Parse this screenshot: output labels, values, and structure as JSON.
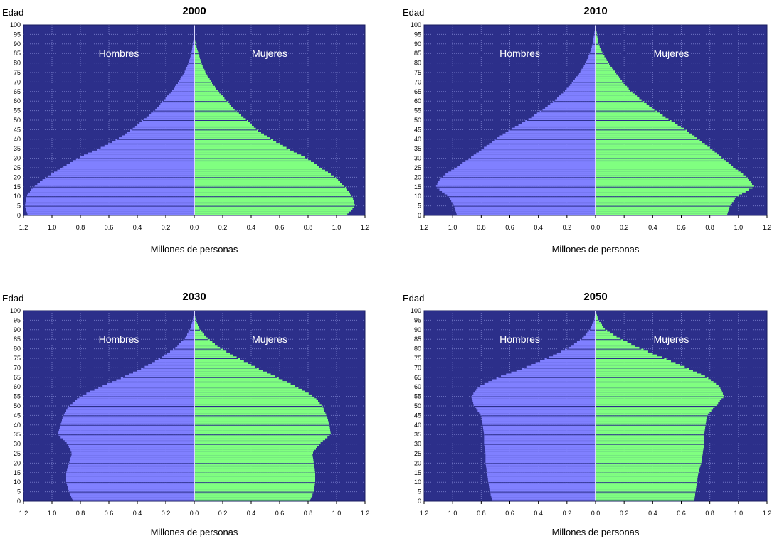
{
  "colors": {
    "plot_background": "#2c2f8a",
    "grid": "#6f74c4",
    "hombres": "#8080ff",
    "mujeres": "#80ff80",
    "center_line": "#d8d8ff",
    "band_separator": "#2c2f8a"
  },
  "chart_data": [
    {
      "type": "bar",
      "subtype": "population-pyramid",
      "title": "2000",
      "ylabel": "Edad",
      "xlabel": "Millones de personas",
      "left_series_label": "Hombres",
      "right_series_label": "Mujeres",
      "yticks": [
        "0",
        "5",
        "10",
        "15",
        "20",
        "25",
        "30",
        "35",
        "40",
        "45",
        "50",
        "55",
        "60",
        "65",
        "70",
        "75",
        "80",
        "85",
        "90",
        "95",
        "100"
      ],
      "xticks": [
        "1.2",
        "1.0",
        "0.8",
        "0.6",
        "0.4",
        "0.2",
        "0.0",
        "0.2",
        "0.4",
        "0.6",
        "0.8",
        "1.0",
        "1.2"
      ],
      "xlim": [
        -1.2,
        1.2
      ],
      "ylim": [
        0,
        100
      ],
      "grid": true,
      "series": [
        {
          "name": "Hombres",
          "ages": [
            0,
            5,
            10,
            15,
            20,
            25,
            30,
            35,
            40,
            45,
            50,
            55,
            60,
            65,
            70,
            75,
            80,
            85,
            90,
            95,
            100
          ],
          "values": [
            1.17,
            1.19,
            1.18,
            1.13,
            1.04,
            0.93,
            0.82,
            0.67,
            0.54,
            0.44,
            0.36,
            0.28,
            0.22,
            0.16,
            0.11,
            0.07,
            0.04,
            0.02,
            0.01,
            0.0,
            0.0
          ]
        },
        {
          "name": "Mujeres",
          "ages": [
            0,
            5,
            10,
            15,
            20,
            25,
            30,
            35,
            40,
            45,
            50,
            55,
            60,
            65,
            70,
            75,
            80,
            85,
            90,
            95,
            100
          ],
          "values": [
            1.07,
            1.13,
            1.11,
            1.06,
            0.99,
            0.89,
            0.79,
            0.66,
            0.54,
            0.44,
            0.37,
            0.29,
            0.23,
            0.17,
            0.12,
            0.08,
            0.05,
            0.03,
            0.01,
            0.0,
            0.0
          ]
        }
      ]
    },
    {
      "type": "bar",
      "subtype": "population-pyramid",
      "title": "2010",
      "ylabel": "Edad",
      "xlabel": "Millones de personas",
      "left_series_label": "Hombres",
      "right_series_label": "Mujeres",
      "yticks": [
        "0",
        "5",
        "10",
        "15",
        "20",
        "25",
        "30",
        "35",
        "40",
        "45",
        "50",
        "55",
        "60",
        "65",
        "70",
        "75",
        "80",
        "85",
        "90",
        "95",
        "100"
      ],
      "xticks": [
        "1.2",
        "1.0",
        "0.8",
        "0.6",
        "0.4",
        "0.2",
        "0.0",
        "0.2",
        "0.4",
        "0.6",
        "0.8",
        "1.0",
        "1.2"
      ],
      "xlim": [
        -1.2,
        1.2
      ],
      "ylim": [
        0,
        100
      ],
      "grid": true,
      "series": [
        {
          "name": "Hombres",
          "ages": [
            0,
            5,
            10,
            15,
            20,
            25,
            30,
            35,
            40,
            45,
            50,
            55,
            60,
            65,
            70,
            75,
            80,
            85,
            90,
            95,
            100
          ],
          "values": [
            0.97,
            0.99,
            1.03,
            1.12,
            1.08,
            0.98,
            0.88,
            0.79,
            0.7,
            0.6,
            0.48,
            0.38,
            0.29,
            0.22,
            0.16,
            0.11,
            0.07,
            0.04,
            0.02,
            0.01,
            0.0
          ]
        },
        {
          "name": "Mujeres",
          "ages": [
            0,
            5,
            10,
            15,
            20,
            25,
            30,
            35,
            40,
            45,
            50,
            55,
            60,
            65,
            70,
            75,
            80,
            85,
            90,
            95,
            100
          ],
          "values": [
            0.92,
            0.94,
            0.99,
            1.11,
            1.06,
            0.97,
            0.89,
            0.81,
            0.72,
            0.63,
            0.52,
            0.42,
            0.33,
            0.25,
            0.19,
            0.14,
            0.09,
            0.05,
            0.02,
            0.01,
            0.0
          ]
        }
      ]
    },
    {
      "type": "bar",
      "subtype": "population-pyramid",
      "title": "2030",
      "ylabel": "Edad",
      "xlabel": "Millones de personas",
      "left_series_label": "Hombres",
      "right_series_label": "Mujeres",
      "yticks": [
        "0",
        "5",
        "10",
        "15",
        "20",
        "25",
        "30",
        "35",
        "40",
        "45",
        "50",
        "55",
        "60",
        "65",
        "70",
        "75",
        "80",
        "85",
        "90",
        "95",
        "100"
      ],
      "xticks": [
        "1.2",
        "1.0",
        "0.8",
        "0.6",
        "0.4",
        "0.2",
        "0.0",
        "0.2",
        "0.4",
        "0.6",
        "0.8",
        "1.0",
        "1.2"
      ],
      "xlim": [
        -1.2,
        1.2
      ],
      "ylim": [
        0,
        100
      ],
      "grid": true,
      "series": [
        {
          "name": "Hombres",
          "ages": [
            0,
            5,
            10,
            15,
            20,
            25,
            30,
            35,
            40,
            45,
            50,
            55,
            60,
            65,
            70,
            75,
            80,
            85,
            90,
            95,
            100
          ],
          "values": [
            0.85,
            0.88,
            0.9,
            0.9,
            0.88,
            0.86,
            0.89,
            0.96,
            0.94,
            0.92,
            0.88,
            0.8,
            0.66,
            0.5,
            0.36,
            0.24,
            0.14,
            0.07,
            0.03,
            0.01,
            0.0
          ]
        },
        {
          "name": "Mujeres",
          "ages": [
            0,
            5,
            10,
            15,
            20,
            25,
            30,
            35,
            40,
            45,
            50,
            55,
            60,
            65,
            70,
            75,
            80,
            85,
            90,
            95,
            100
          ],
          "values": [
            0.81,
            0.84,
            0.85,
            0.85,
            0.84,
            0.83,
            0.88,
            0.96,
            0.95,
            0.93,
            0.9,
            0.84,
            0.72,
            0.58,
            0.44,
            0.31,
            0.19,
            0.1,
            0.04,
            0.01,
            0.0
          ]
        }
      ]
    },
    {
      "type": "bar",
      "subtype": "population-pyramid",
      "title": "2050",
      "ylabel": "Edad",
      "xlabel": "Millones de personas",
      "left_series_label": "Hombres",
      "right_series_label": "Mujeres",
      "yticks": [
        "0",
        "5",
        "10",
        "15",
        "20",
        "25",
        "30",
        "35",
        "40",
        "45",
        "50",
        "55",
        "60",
        "65",
        "70",
        "75",
        "80",
        "85",
        "90",
        "95",
        "100"
      ],
      "xticks": [
        "1.2",
        "1.0",
        "0.8",
        "0.6",
        "0.4",
        "0.2",
        "0.0",
        "0.2",
        "0.4",
        "0.6",
        "0.8",
        "1.0",
        "1.2"
      ],
      "xlim": [
        -1.2,
        1.2
      ],
      "ylim": [
        0,
        100
      ],
      "grid": true,
      "series": [
        {
          "name": "Hombres",
          "ages": [
            0,
            5,
            10,
            15,
            20,
            25,
            30,
            35,
            40,
            45,
            50,
            55,
            60,
            65,
            70,
            75,
            80,
            85,
            90,
            95,
            100
          ],
          "values": [
            0.72,
            0.74,
            0.75,
            0.76,
            0.77,
            0.77,
            0.78,
            0.78,
            0.79,
            0.8,
            0.85,
            0.87,
            0.82,
            0.68,
            0.5,
            0.34,
            0.2,
            0.1,
            0.04,
            0.01,
            0.0
          ]
        },
        {
          "name": "Mujeres",
          "ages": [
            0,
            5,
            10,
            15,
            20,
            25,
            30,
            35,
            40,
            45,
            50,
            55,
            60,
            65,
            70,
            75,
            80,
            85,
            90,
            95,
            100
          ],
          "values": [
            0.69,
            0.7,
            0.71,
            0.72,
            0.74,
            0.75,
            0.76,
            0.76,
            0.77,
            0.78,
            0.84,
            0.9,
            0.87,
            0.78,
            0.64,
            0.48,
            0.32,
            0.18,
            0.07,
            0.02,
            0.0
          ]
        }
      ]
    }
  ]
}
